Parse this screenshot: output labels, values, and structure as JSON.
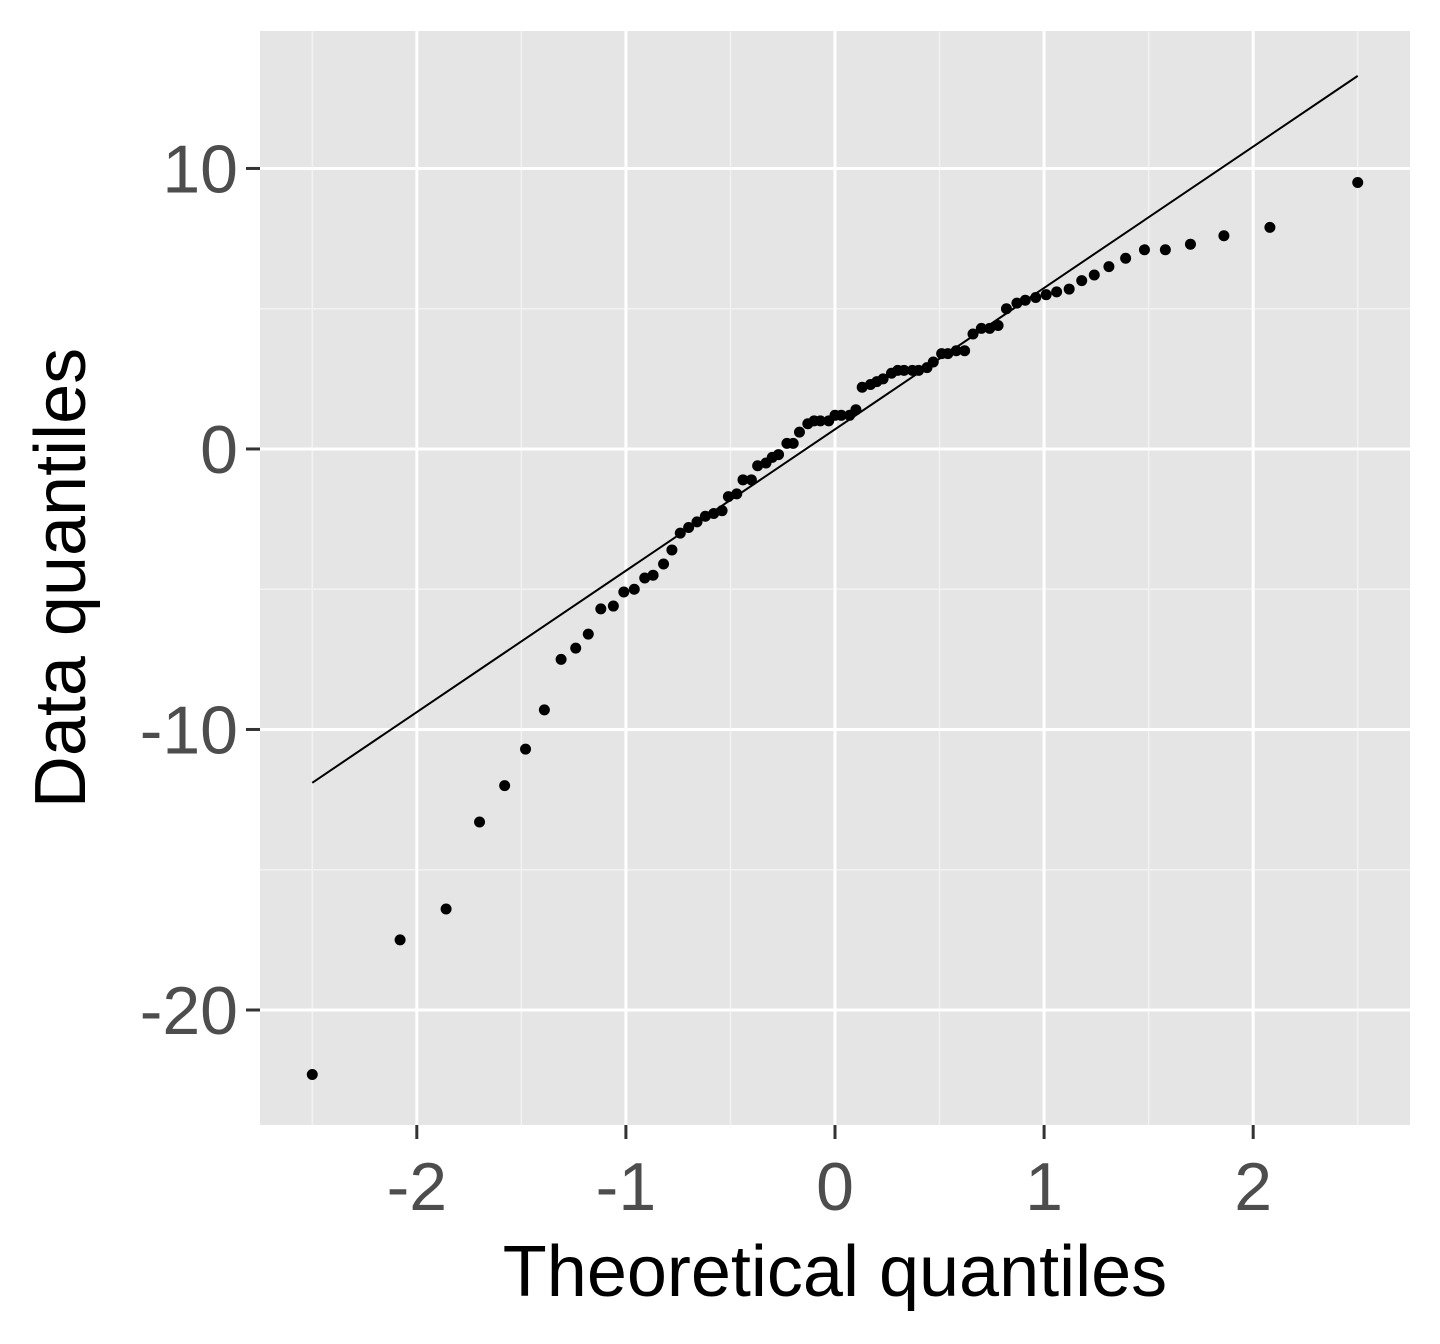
{
  "chart_data": {
    "type": "scatter",
    "title": "",
    "xlabel": "Theoretical quantiles",
    "ylabel": "Data quantiles",
    "xlim": [
      -2.75,
      2.75
    ],
    "ylim": [
      -24.1,
      14.9
    ],
    "x_ticks": [
      -2,
      -1,
      0,
      1,
      2
    ],
    "x_tick_labels": [
      "-2",
      "-1",
      "0",
      "1",
      "2"
    ],
    "y_ticks": [
      -20,
      -10,
      0,
      10
    ],
    "y_tick_labels": [
      "-20",
      "-10",
      "0",
      "10"
    ],
    "grid": true,
    "legend": "none",
    "colors": {
      "panel_background": "#e5e5e5",
      "grid_major": "#ffffff",
      "grid_minor": "#f2f2f2",
      "points": "#000000",
      "reference_line": "#000000",
      "tick_label": "#4d4d4d",
      "axis_title": "#000000"
    },
    "reference_line": {
      "x": [
        -2.5,
        2.5
      ],
      "y": [
        -11.9,
        13.3
      ]
    },
    "series": [
      {
        "x": [
          -2.5,
          -2.08,
          -1.86,
          -1.7,
          -1.58,
          -1.48,
          -1.39,
          -1.31,
          -1.24,
          -1.18,
          -1.12,
          -1.06,
          -1.01,
          -0.96,
          -0.91,
          -0.87,
          -0.82,
          -0.78,
          -0.74,
          -0.7,
          -0.66,
          -0.62,
          -0.58,
          -0.54,
          -0.51,
          -0.47,
          -0.44,
          -0.4,
          -0.37,
          -0.33,
          -0.3,
          -0.27,
          -0.23,
          -0.2,
          -0.17,
          -0.13,
          -0.1,
          -0.07,
          -0.03,
          0.0,
          0.03,
          0.07,
          0.1,
          0.13,
          0.17,
          0.2,
          0.23,
          0.27,
          0.3,
          0.33,
          0.37,
          0.4,
          0.44,
          0.47,
          0.51,
          0.54,
          0.58,
          0.62,
          0.66,
          0.7,
          0.74,
          0.78,
          0.82,
          0.87,
          0.91,
          0.96,
          1.01,
          1.06,
          1.12,
          1.18,
          1.24,
          1.31,
          1.39,
          1.48,
          1.58,
          1.7,
          1.86,
          2.08,
          2.5
        ],
        "y": [
          -22.3,
          -17.5,
          -16.4,
          -13.3,
          -12.0,
          -10.7,
          -9.3,
          -7.5,
          -7.1,
          -6.6,
          -5.7,
          -5.6,
          -5.1,
          -5.0,
          -4.6,
          -4.5,
          -4.1,
          -3.6,
          -3.0,
          -2.8,
          -2.6,
          -2.4,
          -2.3,
          -2.2,
          -1.7,
          -1.6,
          -1.1,
          -1.1,
          -0.6,
          -0.5,
          -0.3,
          -0.2,
          0.2,
          0.2,
          0.6,
          0.9,
          1.0,
          1.0,
          1.0,
          1.2,
          1.2,
          1.2,
          1.4,
          2.2,
          2.3,
          2.4,
          2.5,
          2.7,
          2.8,
          2.8,
          2.8,
          2.8,
          2.9,
          3.1,
          3.4,
          3.4,
          3.5,
          3.5,
          4.1,
          4.3,
          4.3,
          4.4,
          5.0,
          5.2,
          5.3,
          5.4,
          5.5,
          5.6,
          5.7,
          6.0,
          6.2,
          6.5,
          6.8,
          7.1,
          7.1,
          7.3,
          7.6,
          7.9,
          9.5
        ]
      }
    ]
  }
}
